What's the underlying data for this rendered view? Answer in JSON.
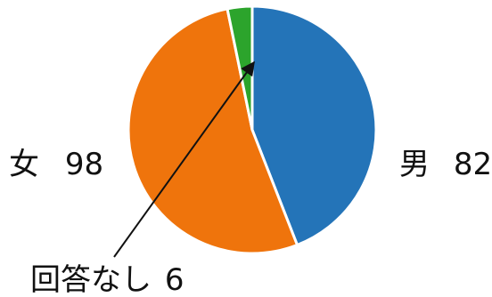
{
  "chart_data": {
    "type": "pie",
    "slices": [
      {
        "label": "男",
        "value": 82,
        "color": "#2474b8"
      },
      {
        "label": "女",
        "value": 98,
        "color": "#ef740c"
      },
      {
        "label": "回答なし",
        "value": 6,
        "color": "#2ca42c"
      }
    ],
    "data_labels": {
      "male": "男",
      "male_value": "82",
      "female": "女",
      "female_value": "98",
      "none": "回答なし",
      "none_value": "6"
    }
  }
}
